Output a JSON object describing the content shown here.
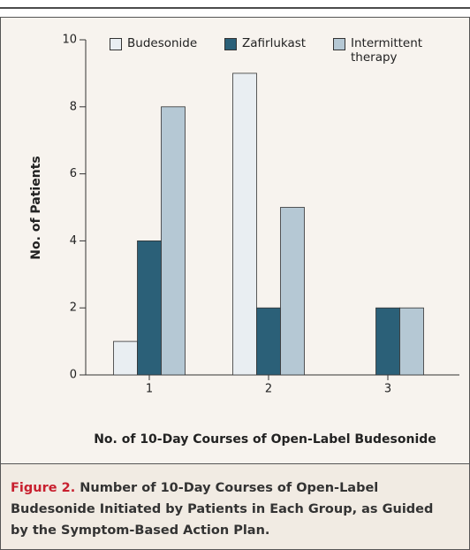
{
  "chart_data": {
    "type": "bar",
    "x_label": "No. of 10-Day Courses of Open-Label Budesonide",
    "y_label": "No. of Patients",
    "categories": [
      "1",
      "2",
      "3"
    ],
    "series": [
      {
        "name": "Budesonide",
        "color": "#e9eef2",
        "values": [
          1,
          9,
          0
        ]
      },
      {
        "name": "Zafirlukast",
        "color": "#2b6078",
        "values": [
          4,
          2,
          2
        ]
      },
      {
        "name": "Intermittent therapy",
        "color": "#b5c8d4",
        "values": [
          8,
          5,
          2
        ]
      }
    ],
    "ylim": [
      0,
      10
    ],
    "yticks": [
      0,
      2,
      4,
      6,
      8,
      10
    ]
  },
  "caption": {
    "label": "Figure 2.",
    "text": "Number of 10-Day Courses of Open-Label Budesonide Initiated by Patients in Each Group, as Guided by the Symptom-Based Action Plan."
  }
}
